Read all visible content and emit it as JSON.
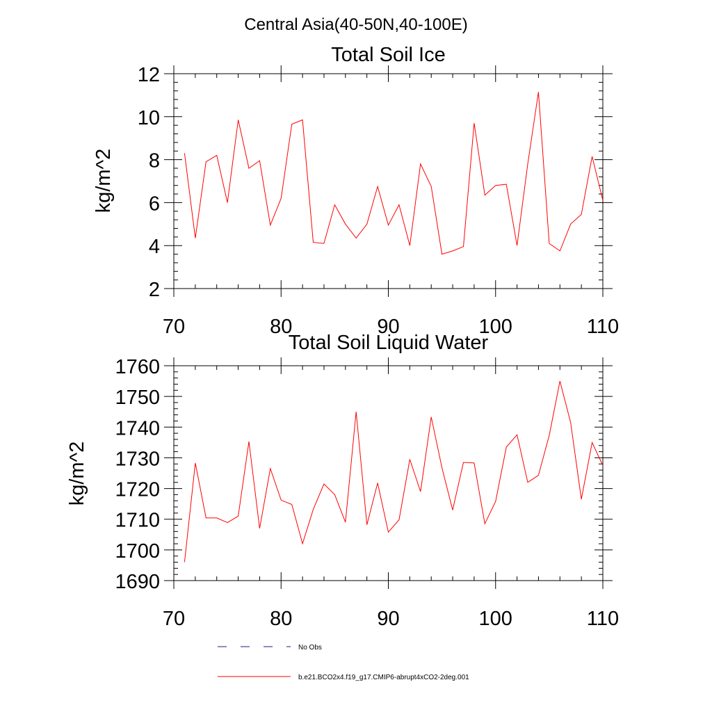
{
  "figure": {
    "main_title": "Central Asia(40-50N,40-100E)"
  },
  "colors": {
    "series": "#ff0000",
    "obs": "#1a1a8c",
    "axis": "#000000"
  },
  "chart_data": [
    {
      "type": "line",
      "title": "Total Soil Ice",
      "xlabel": "",
      "ylabel": "kg/m^2",
      "xlim": [
        70,
        110
      ],
      "ylim": [
        2,
        12
      ],
      "xticks": [
        70,
        80,
        90,
        100,
        110
      ],
      "yticks": [
        2,
        4,
        6,
        8,
        10,
        12
      ],
      "ytick_labels": [
        "2",
        "4",
        "6",
        "8",
        "10",
        "12"
      ],
      "x_minor_step": 2,
      "y_minor_step": 0.4,
      "grid": false,
      "series": [
        {
          "name": "b.e21.BCO2x4.f19_g17.CMIP6-abrupt4xCO2-2deg.001",
          "x": [
            71,
            72,
            73,
            74,
            75,
            76,
            77,
            78,
            79,
            80,
            81,
            82,
            83,
            84,
            85,
            86,
            87,
            88,
            89,
            90,
            91,
            92,
            93,
            94,
            95,
            96,
            97,
            98,
            99,
            100,
            101,
            102,
            103,
            104,
            105,
            106,
            107,
            108,
            109,
            110
          ],
          "values": [
            8.3,
            4.35,
            7.9,
            8.2,
            6.0,
            9.85,
            7.6,
            7.95,
            4.95,
            6.2,
            9.65,
            9.85,
            4.15,
            4.1,
            5.9,
            5.0,
            4.35,
            5.0,
            6.75,
            4.95,
            5.9,
            4.0,
            7.8,
            6.75,
            3.6,
            3.75,
            3.95,
            9.7,
            6.35,
            6.8,
            6.85,
            4.0,
            7.8,
            11.15,
            4.1,
            3.75,
            5.0,
            5.45,
            8.15,
            6.1
          ]
        }
      ]
    },
    {
      "type": "line",
      "title": "Total Soil Liquid Water",
      "xlabel": "",
      "ylabel": "kg/m^2",
      "xlim": [
        70,
        110
      ],
      "ylim": [
        1690,
        1760
      ],
      "xticks": [
        70,
        80,
        90,
        100,
        110
      ],
      "yticks": [
        1690,
        1700,
        1710,
        1720,
        1730,
        1740,
        1750,
        1760
      ],
      "ytick_labels": [
        "1690",
        "1700",
        "1710",
        "1720",
        "1730",
        "1740",
        "1750",
        "1760"
      ],
      "x_minor_step": 2,
      "y_minor_step": 2,
      "grid": false,
      "series": [
        {
          "name": "b.e21.BCO2x4.f19_g17.CMIP6-abrupt4xCO2-2deg.001",
          "x": [
            71,
            72,
            73,
            74,
            75,
            76,
            77,
            78,
            79,
            80,
            81,
            82,
            83,
            84,
            85,
            86,
            87,
            88,
            89,
            90,
            91,
            92,
            93,
            94,
            95,
            96,
            97,
            98,
            99,
            100,
            101,
            102,
            103,
            104,
            105,
            106,
            107,
            108,
            109,
            110
          ],
          "values": [
            1696,
            1728.3,
            1710.4,
            1710.4,
            1708.9,
            1711,
            1735.3,
            1707,
            1726.5,
            1716.2,
            1714.8,
            1702,
            1713.2,
            1721.5,
            1718,
            1709,
            1745,
            1708.2,
            1721.8,
            1705.8,
            1709.8,
            1729.5,
            1719,
            1743.3,
            1726.8,
            1713,
            1728.5,
            1728.3,
            1708.5,
            1715.8,
            1733.5,
            1737.5,
            1722,
            1724.3,
            1737.3,
            1755,
            1741.5,
            1716.5,
            1735,
            1727.5
          ]
        }
      ]
    }
  ],
  "legend": {
    "placement": "bottom-left",
    "entries": [
      {
        "label": "No Obs",
        "style": "dashed",
        "color": "#1a1a8c"
      },
      {
        "label": "b.e21.BCO2x4.f19_g17.CMIP6-abrupt4xCO2-2deg.001",
        "style": "solid",
        "color": "#ff0000"
      }
    ]
  }
}
